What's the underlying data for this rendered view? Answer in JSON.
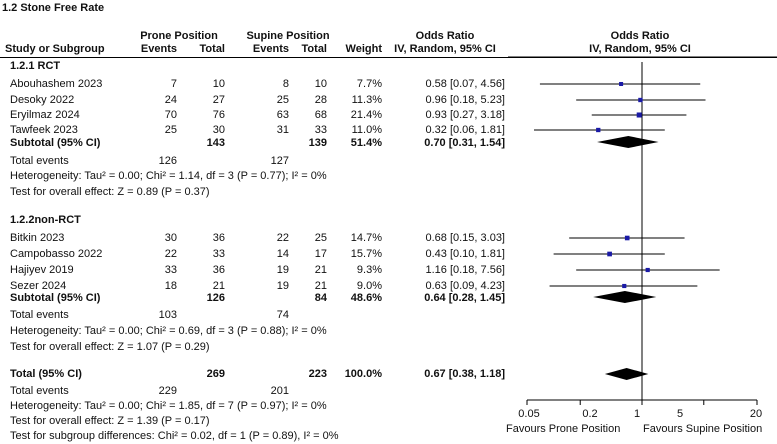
{
  "title": "1.2 Stone Free Rate",
  "headers": {
    "prone_group": "Prone Position",
    "supine_group": "Supine Position",
    "study": "Study or Subgroup",
    "events": "Events",
    "total": "Total",
    "weight": "Weight",
    "or_left": "Odds Ratio",
    "or_left_sub": "IV, Random, 95% CI",
    "or_right": "Odds Ratio",
    "or_right_sub": "IV, Random, 95% CI"
  },
  "subgroups": [
    {
      "label": "1.2.1 RCT",
      "studies": [
        {
          "study": "Abouhashem 2023",
          "e1": "7",
          "t1": "10",
          "e2": "8",
          "t2": "10",
          "weight": "7.7%",
          "ci": "0.58 [0.07, 4.56]"
        },
        {
          "study": "Desoky 2022",
          "e1": "24",
          "t1": "27",
          "e2": "25",
          "t2": "28",
          "weight": "11.3%",
          "ci": "0.96 [0.18, 5.23]"
        },
        {
          "study": "Eryilmaz 2024",
          "e1": "70",
          "t1": "76",
          "e2": "63",
          "t2": "68",
          "weight": "21.4%",
          "ci": "0.93 [0.27, 3.18]"
        },
        {
          "study": "Tawfeek 2023",
          "e1": "25",
          "t1": "30",
          "e2": "31",
          "t2": "33",
          "weight": "11.0%",
          "ci": "0.32 [0.06, 1.81]"
        }
      ],
      "subtotal": {
        "label": "Subtotal (95% CI)",
        "t1": "143",
        "t2": "139",
        "weight": "51.4%",
        "ci": "0.70 [0.31, 1.54]"
      },
      "total_events": {
        "label": "Total events",
        "e1": "126",
        "e2": "127"
      },
      "heterogeneity": "Heterogeneity: Tau² = 0.00; Chi² = 1.14, df = 3 (P = 0.77); I² = 0%",
      "overall": "Test for overall effect: Z = 0.89 (P = 0.37)"
    },
    {
      "label": "1.2.2non-RCT",
      "studies": [
        {
          "study": "Bitkin 2023",
          "e1": "30",
          "t1": "36",
          "e2": "22",
          "t2": "25",
          "weight": "14.7%",
          "ci": "0.68 [0.15, 3.03]"
        },
        {
          "study": "Campobasso 2022",
          "e1": "22",
          "t1": "33",
          "e2": "14",
          "t2": "17",
          "weight": "15.7%",
          "ci": "0.43 [0.10, 1.81]"
        },
        {
          "study": "Hajiyev 2019",
          "e1": "33",
          "t1": "36",
          "e2": "19",
          "t2": "21",
          "weight": "9.3%",
          "ci": "1.16 [0.18, 7.56]"
        },
        {
          "study": "Sezer 2024",
          "e1": "18",
          "t1": "21",
          "e2": "19",
          "t2": "21",
          "weight": "9.0%",
          "ci": "0.63 [0.09, 4.23]"
        }
      ],
      "subtotal": {
        "label": "Subtotal (95% CI)",
        "t1": "126",
        "t2": "84",
        "weight": "48.6%",
        "ci": "0.64 [0.28, 1.45]"
      },
      "total_events": {
        "label": "Total events",
        "e1": "103",
        "e2": "74"
      },
      "heterogeneity": "Heterogeneity: Tau² = 0.00; Chi² = 0.69, df = 3 (P = 0.88); I² = 0%",
      "overall": "Test for overall effect: Z = 1.07 (P = 0.29)"
    }
  ],
  "total": {
    "label": "Total (95% CI)",
    "t1": "269",
    "t2": "223",
    "weight": "100.0%",
    "ci": "0.67 [0.38, 1.18]",
    "events_label": "Total events",
    "e1": "229",
    "e2": "201",
    "heterogeneity": "Heterogeneity: Tau² = 0.00; Chi² = 1.85, df = 7 (P = 0.97); I² = 0%",
    "overall": "Test for overall effect: Z = 1.39 (P = 0.17)",
    "subgroup": "Test for subgroup differences: Chi² = 0.02, df = 1 (P = 0.89), I² = 0%"
  },
  "axis": {
    "ticks": [
      "0.05",
      "0.2",
      "1",
      "5",
      "20"
    ],
    "favours_left": "Favours  Prone Position",
    "favours_right": "Favours  Supine Position"
  },
  "chart_data": {
    "type": "forest",
    "scale": "log",
    "xlim": [
      0.05,
      20
    ],
    "ticks": [
      0.05,
      0.2,
      1,
      5,
      20
    ],
    "null_line": 1,
    "studies": [
      {
        "name": "Abouhashem 2023",
        "or": 0.58,
        "lo": 0.07,
        "hi": 4.56,
        "weight": 7.7
      },
      {
        "name": "Desoky 2022",
        "or": 0.96,
        "lo": 0.18,
        "hi": 5.23,
        "weight": 11.3
      },
      {
        "name": "Eryilmaz 2024",
        "or": 0.93,
        "lo": 0.27,
        "hi": 3.18,
        "weight": 21.4
      },
      {
        "name": "Tawfeek 2023",
        "or": 0.32,
        "lo": 0.06,
        "hi": 1.81,
        "weight": 11.0
      },
      {
        "name": "Bitkin 2023",
        "or": 0.68,
        "lo": 0.15,
        "hi": 3.03,
        "weight": 14.7
      },
      {
        "name": "Campobasso 2022",
        "or": 0.43,
        "lo": 0.1,
        "hi": 1.81,
        "weight": 15.7
      },
      {
        "name": "Hajiyev 2019",
        "or": 1.16,
        "lo": 0.18,
        "hi": 7.56,
        "weight": 9.3
      },
      {
        "name": "Sezer 2024",
        "or": 0.63,
        "lo": 0.09,
        "hi": 4.23,
        "weight": 9.0
      }
    ],
    "diamonds": [
      {
        "name": "Subtotal 1.2.1 RCT",
        "or": 0.7,
        "lo": 0.31,
        "hi": 1.54
      },
      {
        "name": "Subtotal 1.2.2 non-RCT",
        "or": 0.64,
        "lo": 0.28,
        "hi": 1.45
      },
      {
        "name": "Total",
        "or": 0.67,
        "lo": 0.38,
        "hi": 1.18
      }
    ],
    "colors": {
      "square": "#1a1aa6",
      "line": "#000000",
      "diamond": "#000000"
    }
  }
}
